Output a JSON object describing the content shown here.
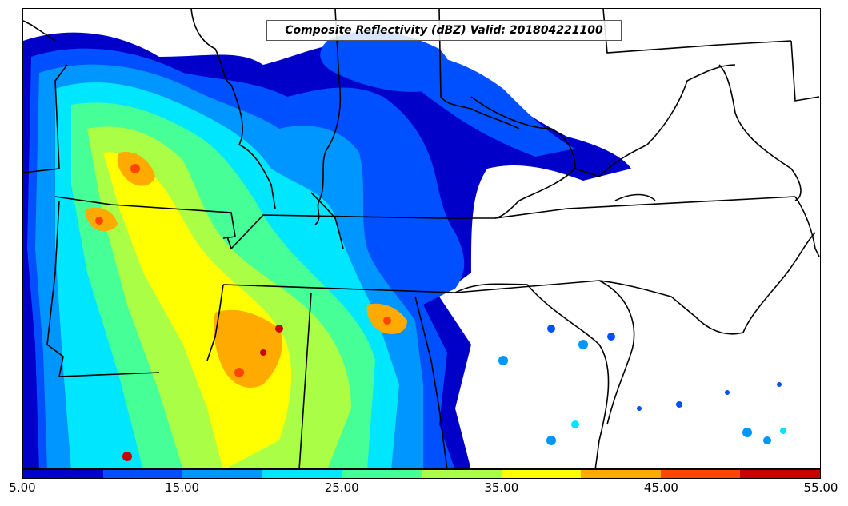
{
  "title": "Composite Reflectivity (dBZ) Valid: 201804221100",
  "colorbar": {
    "colors": [
      "#0000c8",
      "#0050ff",
      "#0096ff",
      "#00e6ff",
      "#46ff96",
      "#aaff46",
      "#ffff00",
      "#ffaa00",
      "#ff4600",
      "#c80000"
    ],
    "tick_labels": [
      "5.00",
      "15.00",
      "25.00",
      "35.00",
      "45.00",
      "55.00"
    ]
  },
  "map": {
    "background": "#ffffff",
    "border_color": "#000000"
  }
}
